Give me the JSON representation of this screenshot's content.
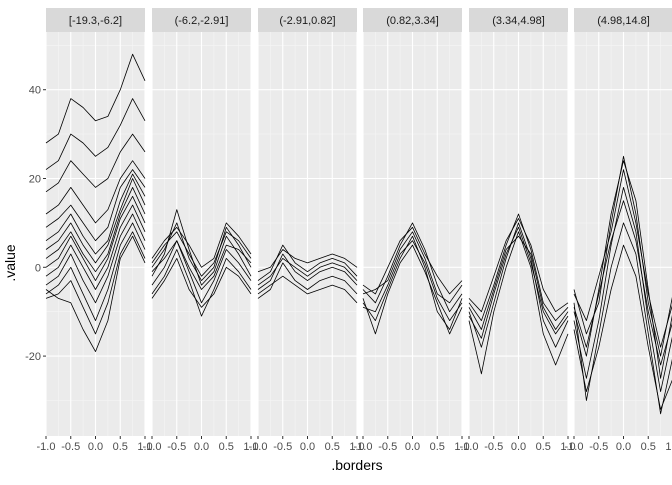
{
  "chart_data": {
    "type": "line",
    "xlabel": ".borders",
    "ylabel": ".value",
    "xlim": [
      -1.0,
      1.0
    ],
    "ylim": [
      -38,
      53
    ],
    "x_ticks": [
      -1.0,
      -0.5,
      0.0,
      0.5,
      1.0
    ],
    "x_tick_labels": [
      "-1.0",
      "-0.5",
      "0.0",
      "0.5",
      "1.0"
    ],
    "y_ticks": [
      -20,
      0,
      20,
      40
    ],
    "y_tick_labels": [
      "-20",
      "0",
      "20",
      "40"
    ],
    "grid": true,
    "panels": [
      {
        "label": "[-19.3,-6.2]",
        "x": [
          -1.0,
          -0.75,
          -0.5,
          -0.25,
          0.0,
          0.25,
          0.5,
          0.75,
          1.0
        ],
        "series": [
          {
            "values": [
              28,
              30,
              38,
              36,
              33,
              34,
              40,
              48,
              42
            ]
          },
          {
            "values": [
              22,
              24,
              30,
              28,
              25,
              27,
              32,
              38,
              33
            ]
          },
          {
            "values": [
              17,
              19,
              24,
              21,
              18,
              20,
              26,
              30,
              26
            ]
          },
          {
            "values": [
              12,
              14,
              18,
              14,
              10,
              13,
              20,
              24,
              20
            ]
          },
          {
            "values": [
              9,
              11,
              14,
              10,
              6,
              9,
              18,
              22,
              18
            ]
          },
          {
            "values": [
              6,
              8,
              12,
              7,
              3,
              6,
              15,
              21,
              16
            ]
          },
          {
            "values": [
              4,
              6,
              10,
              5,
              1,
              5,
              13,
              20,
              14
            ]
          },
          {
            "values": [
              2,
              4,
              8,
              3,
              -1,
              3,
              12,
              18,
              12
            ]
          },
          {
            "values": [
              0,
              2,
              7,
              2,
              -3,
              2,
              11,
              16,
              10
            ]
          },
          {
            "values": [
              -2,
              0,
              5,
              0,
              -5,
              0,
              9,
              14,
              8
            ]
          },
          {
            "values": [
              -4,
              -2,
              3,
              -3,
              -8,
              -2,
              7,
              12,
              6
            ]
          },
          {
            "values": [
              -6,
              -4,
              0,
              -6,
              -12,
              -5,
              5,
              10,
              4
            ]
          },
          {
            "values": [
              -7,
              -6,
              -3,
              -9,
              -15,
              -8,
              3,
              8,
              2
            ]
          },
          {
            "values": [
              -5,
              -7,
              -8,
              -14,
              -19,
              -12,
              2,
              7,
              1
            ]
          }
        ]
      },
      {
        "label": "(-6.2,-2.91]",
        "x": [
          -1.0,
          -0.75,
          -0.5,
          -0.25,
          0.0,
          0.25,
          0.5,
          0.75,
          1.0
        ],
        "series": [
          {
            "values": [
              -2,
              3,
              13,
              4,
              -4,
              -1,
              7,
              3,
              -2
            ]
          },
          {
            "values": [
              0,
              4,
              10,
              2,
              -3,
              0,
              9,
              5,
              0
            ]
          },
          {
            "values": [
              1,
              5,
              8,
              3,
              -2,
              1,
              8,
              6,
              2
            ]
          },
          {
            "values": [
              -4,
              0,
              6,
              -1,
              -8,
              -3,
              4,
              1,
              -3
            ]
          },
          {
            "values": [
              -6,
              -2,
              4,
              -3,
              -11,
              -5,
              2,
              -1,
              -5
            ]
          },
          {
            "values": [
              -1,
              2,
              6,
              0,
              -5,
              -2,
              5,
              4,
              1
            ]
          },
          {
            "values": [
              -7,
              -3,
              2,
              -5,
              -9,
              -6,
              0,
              -2,
              -6
            ]
          },
          {
            "values": [
              2,
              6,
              9,
              5,
              0,
              2,
              10,
              7,
              3
            ]
          }
        ]
      },
      {
        "label": "(-2.91,0.82]",
        "x": [
          -1.0,
          -0.75,
          -0.5,
          -0.25,
          0.0,
          0.25,
          0.5,
          0.75,
          1.0
        ],
        "series": [
          {
            "values": [
              -3,
              -1,
              5,
              1,
              -1,
              1,
              2,
              1,
              -2
            ]
          },
          {
            "values": [
              -5,
              -3,
              3,
              -1,
              -3,
              -1,
              0,
              -1,
              -4
            ]
          },
          {
            "values": [
              -7,
              -5,
              1,
              -3,
              -5,
              -3,
              -2,
              -3,
              -6
            ]
          },
          {
            "values": [
              -1,
              0,
              4,
              2,
              1,
              2,
              3,
              2,
              0
            ]
          },
          {
            "values": [
              -6,
              -4,
              -2,
              -4,
              -6,
              -5,
              -4,
              -5,
              -8
            ]
          },
          {
            "values": [
              -4,
              -2,
              2,
              0,
              -2,
              0,
              1,
              0,
              -3
            ]
          }
        ]
      },
      {
        "label": "(0.82,3.34]",
        "x": [
          -1.0,
          -0.75,
          -0.5,
          -0.25,
          0.0,
          0.25,
          0.5,
          0.75,
          1.0
        ],
        "series": [
          {
            "values": [
              -6,
              -5,
              -3,
              4,
              8,
              2,
              -6,
              -8,
              -4
            ]
          },
          {
            "values": [
              -8,
              -12,
              -5,
              2,
              7,
              0,
              -10,
              -14,
              -7
            ]
          },
          {
            "values": [
              -5,
              -8,
              -2,
              5,
              10,
              4,
              -4,
              -10,
              -6
            ]
          },
          {
            "values": [
              -7,
              -15,
              -6,
              1,
              5,
              -1,
              -8,
              -15,
              -9
            ]
          },
          {
            "values": [
              -4,
              -6,
              0,
              6,
              9,
              3,
              -2,
              -6,
              -3
            ]
          },
          {
            "values": [
              -9,
              -10,
              -4,
              3,
              6,
              1,
              -7,
              -12,
              -8
            ]
          }
        ]
      },
      {
        "label": "(3.34,4.98]",
        "x": [
          -1.0,
          -0.75,
          -0.5,
          -0.25,
          0.0,
          0.25,
          0.5,
          0.75,
          1.0
        ],
        "series": [
          {
            "values": [
              -8,
              -12,
              -4,
              5,
              12,
              4,
              -8,
              -12,
              -9
            ]
          },
          {
            "values": [
              -10,
              -18,
              -8,
              2,
              10,
              2,
              -12,
              -18,
              -12
            ]
          },
          {
            "values": [
              -12,
              -24,
              -10,
              0,
              8,
              0,
              -15,
              -22,
              -15
            ]
          },
          {
            "values": [
              -7,
              -10,
              -2,
              6,
              11,
              5,
              -5,
              -10,
              -8
            ]
          },
          {
            "values": [
              -11,
              -16,
              -6,
              3,
              9,
              1,
              -10,
              -15,
              -11
            ]
          },
          {
            "values": [
              -9,
              -14,
              -5,
              4,
              7,
              3,
              -9,
              -14,
              -10
            ]
          }
        ]
      },
      {
        "label": "(4.98,14.8]",
        "x": [
          -1.0,
          -0.75,
          -0.5,
          -0.25,
          0.0,
          0.25,
          0.5,
          0.75,
          1.0
        ],
        "series": [
          {
            "values": [
              -5,
              -15,
              -8,
              10,
              25,
              12,
              -8,
              -20,
              -6
            ]
          },
          {
            "values": [
              -10,
              -20,
              -5,
              12,
              24,
              15,
              -5,
              -25,
              -10
            ]
          },
          {
            "values": [
              -12,
              -25,
              -12,
              5,
              18,
              8,
              -12,
              -28,
              -15
            ]
          },
          {
            "values": [
              -8,
              -30,
              -15,
              0,
              10,
              3,
              -15,
              -33,
              -20
            ]
          },
          {
            "values": [
              -6,
              -12,
              -2,
              8,
              22,
              10,
              -6,
              -18,
              -8
            ]
          },
          {
            "values": [
              -14,
              -28,
              -18,
              -5,
              5,
              -2,
              -18,
              -32,
              -25
            ]
          },
          {
            "values": [
              -9,
              -18,
              -6,
              6,
              15,
              6,
              -10,
              -22,
              -12
            ]
          }
        ]
      }
    ]
  }
}
